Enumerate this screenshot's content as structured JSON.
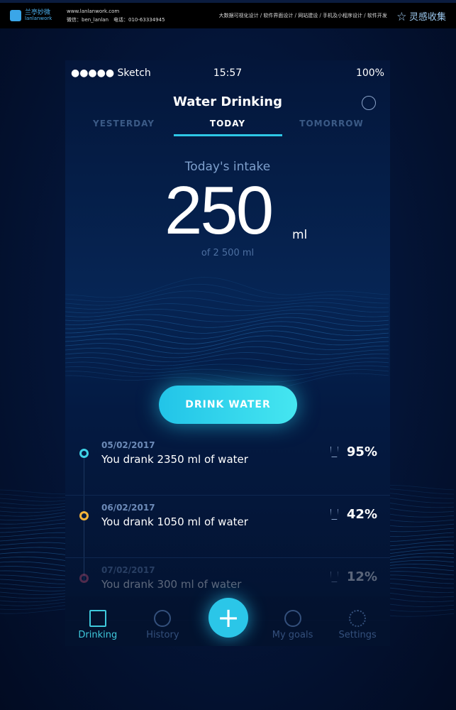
{
  "banner": {
    "logo_text": "兰亭妙微",
    "logo_sub": "lanlanwork",
    "url": "www.lanlanwork.com",
    "contact": "微信：ben_lanlan　电话：010-63334945",
    "services": "大数据可视化设计 / 软件界面设计 / 网站建设 / 手机及小程序设计 / 软件开发",
    "brand": "☆ 灵感收集"
  },
  "status": {
    "carrier": "●●●●● Sketch",
    "time": "15:57",
    "battery": "100%"
  },
  "header": {
    "title": "Water Drinking"
  },
  "tabs": [
    {
      "label": "YESTERDAY"
    },
    {
      "label": "TODAY"
    },
    {
      "label": "TOMORROW"
    }
  ],
  "intake": {
    "label": "Today's intake",
    "value": "250",
    "unit": "ml",
    "goal": "of 2 500 ml"
  },
  "drink_button": "DRINK WATER",
  "history": [
    {
      "date": "05/02/2017",
      "text": "You drank 2350 ml of water",
      "percent": "95%",
      "color": "#3fd2e6"
    },
    {
      "date": "06/02/2017",
      "text": "You drank 1050 ml of water",
      "percent": "42%",
      "color": "#f4b43a"
    },
    {
      "date": "07/02/2017",
      "text": "You drank 300 ml of water",
      "percent": "12%",
      "color": "#e0567a"
    }
  ],
  "nav": [
    {
      "label": "Drinking",
      "icon": "glass-icon"
    },
    {
      "label": "History",
      "icon": "history-icon"
    },
    {
      "label": "My goals",
      "icon": "goal-icon"
    },
    {
      "label": "Settings",
      "icon": "gear-icon"
    }
  ],
  "fab": "+"
}
